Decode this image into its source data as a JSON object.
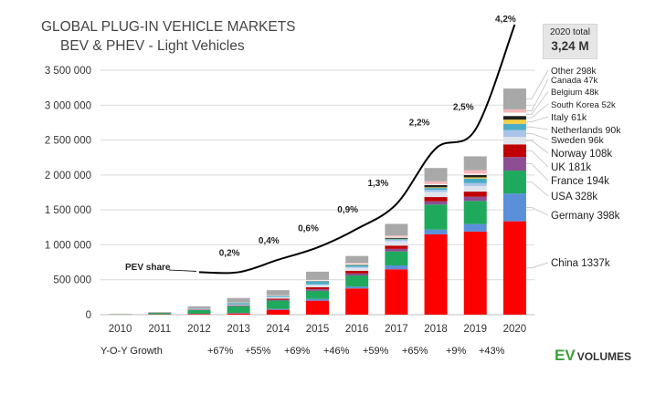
{
  "title_line1": "GLOBAL PLUG-IN VEHICLE MARKETS",
  "title_line2": "BEV & PHEV - Light Vehicles",
  "total_box": {
    "label": "2020 total",
    "value": "3,24 M"
  },
  "yoy": {
    "label": "Y-O-Y Growth",
    "values": [
      "+67%",
      "+55%",
      "+69%",
      "+46%",
      "+59%",
      "+65%",
      "+9%",
      "+43%"
    ]
  },
  "logo": {
    "ev": "EV",
    "volumes": "VOLUMES"
  },
  "chart_data": {
    "type": "bar",
    "stacked": true,
    "title": "GLOBAL PLUG-IN VEHICLE MARKETS BEV & PHEV - Light Vehicles",
    "xlabel": "",
    "ylabel": "",
    "ylim": [
      0,
      3500000
    ],
    "yticks": [
      0,
      500000,
      1000000,
      1500000,
      2000000,
      2500000,
      3000000,
      3500000
    ],
    "ytick_labels": [
      "0",
      "500 000",
      "1 000 000",
      "1 500 000",
      "2 000 000",
      "2 500 000",
      "3 000 000",
      "3 500 000"
    ],
    "grid": true,
    "categories": [
      "2010",
      "2011",
      "2012",
      "2013",
      "2014",
      "2015",
      "2016",
      "2017",
      "2018",
      "2019",
      "2020"
    ],
    "series": [
      {
        "name": "China",
        "color": "#ff0000",
        "values": [
          2000,
          5000,
          10000,
          18000,
          70000,
          200000,
          375000,
          650000,
          1150000,
          1190000,
          1337000
        ]
      },
      {
        "name": "Germany",
        "color": "#5b8fd9",
        "values": [
          500,
          2000,
          3000,
          7000,
          13000,
          25000,
          26000,
          55000,
          68000,
          108000,
          398000
        ]
      },
      {
        "name": "USA",
        "color": "#1fa95c",
        "values": [
          3000,
          18000,
          53000,
          97000,
          120000,
          116000,
          160000,
          200000,
          360000,
          330000,
          328000
        ]
      },
      {
        "name": "France",
        "color": "#8e4e92",
        "values": [
          500,
          2500,
          6000,
          9000,
          11000,
          23000,
          29000,
          37000,
          46000,
          61000,
          194000
        ]
      },
      {
        "name": "UK",
        "color": "#c00000",
        "values": [
          300,
          1200,
          2500,
          3500,
          15000,
          28000,
          37000,
          47000,
          60000,
          73000,
          181000
        ]
      },
      {
        "name": "Norway",
        "color": "#dfe4ec",
        "values": [
          700,
          2000,
          4000,
          8000,
          19000,
          33000,
          45000,
          62000,
          73000,
          80000,
          108000
        ]
      },
      {
        "name": "Sweden",
        "color": "#a9c4ea",
        "values": [
          200,
          400,
          900,
          1500,
          4700,
          8600,
          13000,
          20000,
          30000,
          41000,
          96000
        ]
      },
      {
        "name": "Netherlands",
        "color": "#4bacc6",
        "values": [
          200,
          900,
          5000,
          22000,
          15000,
          43000,
          24000,
          11000,
          27000,
          66000,
          90000
        ]
      },
      {
        "name": "Italy",
        "color": "#f4d03f",
        "values": [
          100,
          300,
          500,
          900,
          1400,
          2000,
          3000,
          5000,
          10000,
          17000,
          61000
        ]
      },
      {
        "name": "South Korea",
        "color": "#1f1f1f",
        "values": [
          100,
          300,
          400,
          800,
          1300,
          3000,
          5000,
          14000,
          33000,
          35000,
          52000
        ]
      },
      {
        "name": "Belgium",
        "color": "#ffffff",
        "values": [
          100,
          400,
          1000,
          3000,
          5000,
          10000,
          12000,
          14000,
          13000,
          17000,
          48000
        ]
      },
      {
        "name": "Canada",
        "color": "#f5b6b6",
        "values": [
          200,
          500,
          1600,
          3000,
          5000,
          7000,
          11000,
          18000,
          40000,
          51000,
          47000
        ]
      },
      {
        "name": "Other",
        "color": "#a8a8a8",
        "values": [
          2000,
          5000,
          30000,
          65000,
          70000,
          117000,
          100000,
          167000,
          190000,
          198000,
          298000
        ]
      }
    ],
    "legend_labels": [
      {
        "name": "Other",
        "text": "Other 298k"
      },
      {
        "name": "Canada",
        "text": "Canada 47k"
      },
      {
        "name": "Belgium",
        "text": "Belgium 48k"
      },
      {
        "name": "South Korea",
        "text": "South Korea 52k"
      },
      {
        "name": "Italy",
        "text": "Italy 61k"
      },
      {
        "name": "Netherlands",
        "text": "Netherlands 90k"
      },
      {
        "name": "Sweden",
        "text": "Sweden 96k"
      },
      {
        "name": "Norway",
        "text": "Norway 108k"
      },
      {
        "name": "UK",
        "text": "UK 181k"
      },
      {
        "name": "France",
        "text": "France 194k"
      },
      {
        "name": "USA",
        "text": "USA 328k"
      },
      {
        "name": "Germany",
        "text": "Germany 398k"
      },
      {
        "name": "China",
        "text": "China 1337k"
      }
    ],
    "pev_share": {
      "label": "PEV share",
      "points": [
        {
          "year": "2012",
          "value": 0.2,
          "text": ""
        },
        {
          "year": "2013",
          "value": 0.2,
          "text": "0,2%"
        },
        {
          "year": "2014",
          "value": 0.4,
          "text": "0,4%"
        },
        {
          "year": "2015",
          "value": 0.6,
          "text": "0,6%"
        },
        {
          "year": "2016",
          "value": 0.9,
          "text": "0,9%"
        },
        {
          "year": "2017",
          "value": 1.3,
          "text": "1,3%"
        },
        {
          "year": "2018",
          "value": 2.2,
          "text": "2,2%"
        },
        {
          "year": "2019",
          "value": 2.5,
          "text": "2,5%"
        },
        {
          "year": "2020",
          "value": 4.2,
          "text": "4,2%"
        }
      ]
    }
  }
}
